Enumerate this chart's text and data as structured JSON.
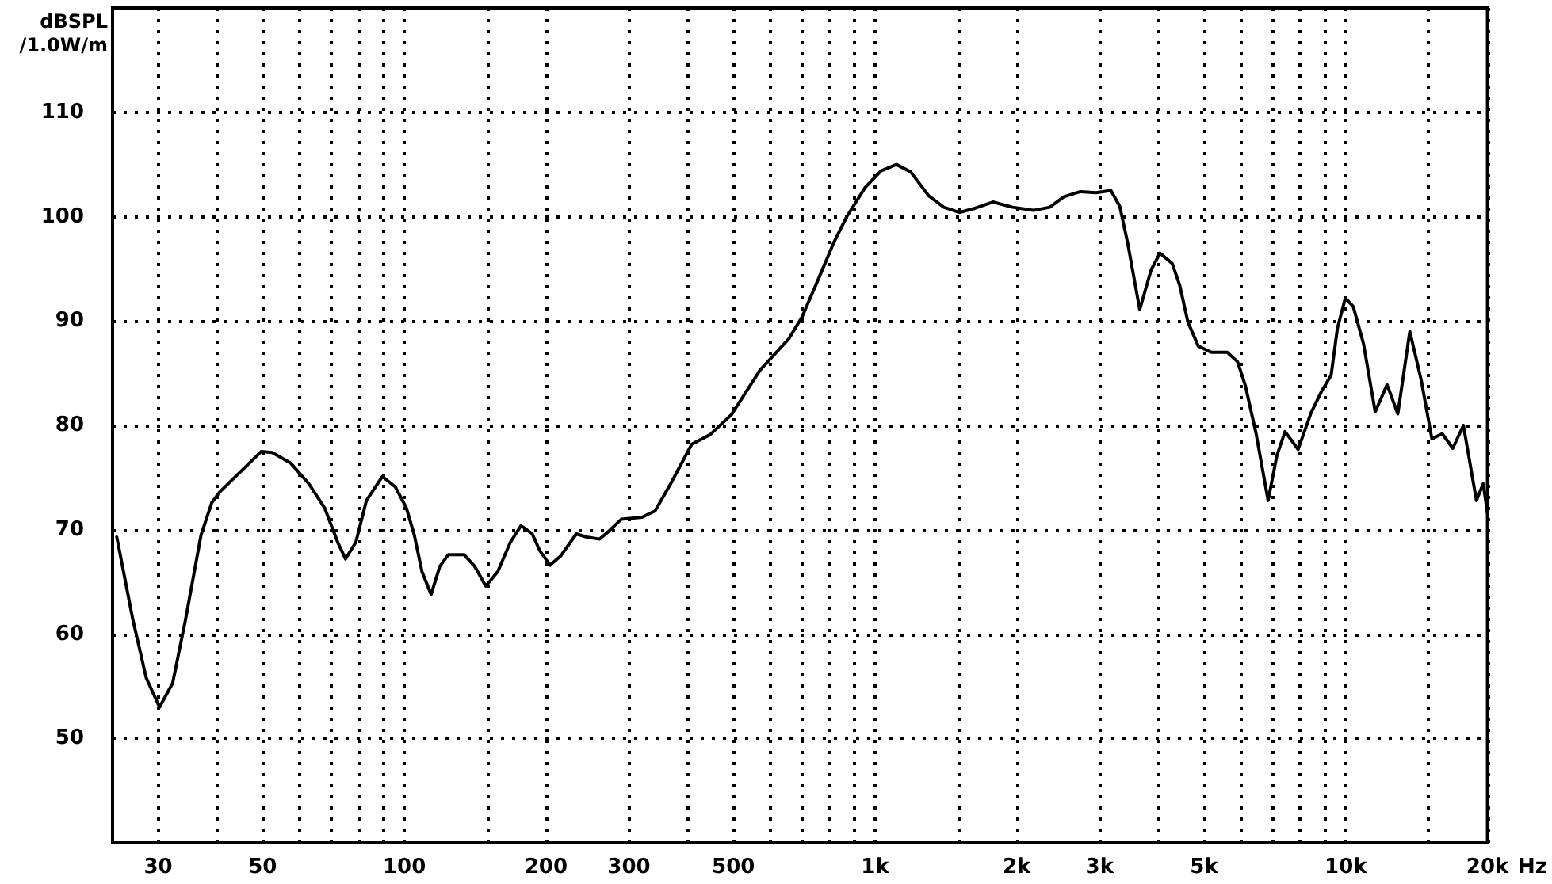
{
  "chart_data": {
    "type": "line",
    "ylabel": "dBSPL\n/1.0W/m",
    "xlabel": "Hz",
    "log": "x",
    "grid": true,
    "color": "#000000",
    "xlim": [
      24,
      20000
    ],
    "ylim": [
      40,
      120
    ],
    "xticks": [
      30,
      {
        "value": 40,
        "label": null
      },
      50,
      {
        "value": 60,
        "label": null
      },
      {
        "value": 70,
        "label": null
      },
      {
        "value": 80,
        "label": null
      },
      {
        "value": 90,
        "label": null
      },
      100,
      {
        "value": 150,
        "label": null
      },
      200,
      300,
      {
        "value": 400,
        "label": null
      },
      500,
      {
        "value": 600,
        "label": null
      },
      {
        "value": 700,
        "label": null
      },
      {
        "value": 800,
        "label": null
      },
      {
        "value": 900,
        "label": null
      },
      {
        "value": 1000,
        "label": "1k"
      },
      {
        "value": 1500,
        "label": null
      },
      {
        "value": 2000,
        "label": "2k"
      },
      {
        "value": 3000,
        "label": "3k"
      },
      {
        "value": 4000,
        "label": null
      },
      {
        "value": 5000,
        "label": "5k"
      },
      {
        "value": 6000,
        "label": null
      },
      {
        "value": 7000,
        "label": null
      },
      {
        "value": 8000,
        "label": null
      },
      {
        "value": 9000,
        "label": null
      },
      {
        "value": 10000,
        "label": "10k"
      },
      {
        "value": 15000,
        "label": null
      },
      {
        "value": 20000,
        "label": "20k"
      }
    ],
    "yticks": [
      50,
      60,
      70,
      80,
      90,
      100,
      110
    ],
    "x": [
      24.5,
      26.5,
      28.3,
      30.2,
      32.2,
      34.3,
      37.0,
      39.0,
      40.5,
      43.8,
      49.7,
      52.4,
      57.3,
      62.7,
      67.7,
      72.2,
      75.0,
      78.9,
      83.1,
      89.8,
      95.7,
      101,
      105,
      109,
      114,
      119,
      124,
      134,
      141,
      149,
      158,
      168,
      177,
      187,
      194,
      204,
      215,
      232,
      244,
      260,
      271,
      289,
      320,
      341,
      368,
      408,
      446,
      495,
      570,
      656,
      700,
      756,
      817,
      871,
      953,
      1030,
      1110,
      1190,
      1300,
      1400,
      1510,
      1630,
      1780,
      1960,
      2170,
      2350,
      2520,
      2730,
      2950,
      3170,
      3310,
      3440,
      3650,
      3860,
      4030,
      4280,
      4440,
      4620,
      4860,
      5180,
      5600,
      5890,
      6120,
      6450,
      6840,
      7140,
      7430,
      7920,
      8440,
      8890,
      9310,
      9600,
      9980,
      10370,
      10910,
      11550,
      12240,
      12900,
      13680,
      14470,
      15240,
      16030,
      16880,
      17780,
      18950,
      19590,
      20000
    ],
    "values": [
      69.3,
      61.4,
      55.8,
      53.0,
      55.3,
      61.4,
      69.5,
      72.6,
      73.6,
      75.1,
      77.5,
      77.4,
      76.4,
      74.4,
      72.1,
      68.8,
      67.2,
      68.8,
      72.8,
      75.1,
      74.1,
      72.1,
      69.5,
      66.0,
      63.8,
      66.5,
      67.6,
      67.6,
      66.5,
      64.6,
      66.0,
      68.8,
      70.4,
      69.6,
      68.0,
      66.6,
      67.5,
      69.6,
      69.3,
      69.1,
      69.8,
      71.0,
      71.2,
      71.8,
      74.4,
      78.2,
      79.1,
      81.0,
      85.3,
      88.3,
      90.4,
      93.9,
      97.5,
      100.0,
      102.8,
      104.4,
      105.0,
      104.3,
      102.0,
      100.9,
      100.4,
      100.8,
      101.4,
      100.9,
      100.6,
      100.9,
      101.9,
      102.4,
      102.3,
      102.5,
      101.0,
      97.5,
      91.1,
      94.9,
      96.5,
      95.5,
      93.4,
      89.9,
      87.6,
      87.0,
      87.0,
      86.1,
      83.8,
      79.2,
      72.8,
      77.1,
      79.4,
      77.7,
      81.2,
      83.3,
      84.8,
      89.3,
      92.2,
      91.4,
      87.8,
      81.3,
      83.9,
      81.1,
      89.0,
      84.3,
      78.7,
      79.2,
      77.8,
      80.0,
      72.8,
      74.4,
      71.6
    ]
  }
}
